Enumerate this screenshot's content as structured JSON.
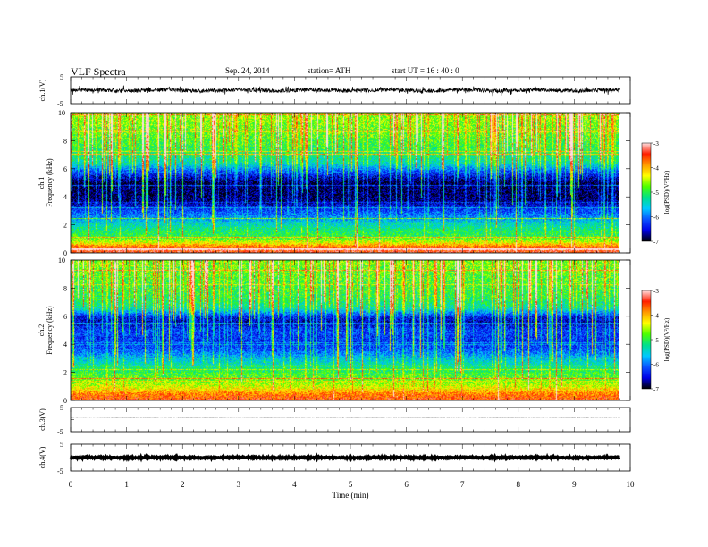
{
  "header": {
    "title": "VLF  Spectra",
    "date": "Sep. 24, 2014",
    "station": "station= ATH",
    "start": "start  UT  =   16 : 40 : 0"
  },
  "colors": {
    "spectrum_scale": [
      "#000000",
      "#0000e6",
      "#0a52ff",
      "#00c8ff",
      "#00e08c",
      "#4cff00",
      "#ffff00",
      "#ff9a00",
      "#ff1e00",
      "#ffe0e0"
    ],
    "trace": "#000000"
  },
  "chart_data": [
    {
      "type": "line",
      "panel": "ch1-waveform",
      "ylabel": "ch.1(V)",
      "ylim": [
        -5,
        5
      ],
      "yticks": [
        "5",
        "-5"
      ],
      "x_range_min": [
        0,
        9.8
      ],
      "baseline_v": 0.0,
      "amplitude_v": 1.4
    },
    {
      "type": "heatmap",
      "panel": "ch1-spectrogram",
      "ylabel_channel": "ch.1",
      "ylabel": "Frequency  (kHz)",
      "ylim": [
        0,
        10
      ],
      "yticks": [
        "0",
        "2",
        "4",
        "6",
        "8",
        "10"
      ],
      "colorbar": {
        "label": "log(PSD)(V²/Hz)",
        "range": [
          -7,
          -3
        ],
        "ticks": [
          "-3",
          "-4",
          "-5",
          "-6",
          "-7"
        ]
      },
      "profile_khz": [
        [
          0.0,
          -3.4
        ],
        [
          0.4,
          -3.6
        ],
        [
          0.8,
          -4.4
        ],
        [
          1.2,
          -5.0
        ],
        [
          1.6,
          -5.1
        ],
        [
          2.0,
          -5.4
        ],
        [
          2.6,
          -5.9
        ],
        [
          3.2,
          -6.3
        ],
        [
          3.8,
          -6.8
        ],
        [
          5.0,
          -6.9
        ],
        [
          5.8,
          -6.2
        ],
        [
          6.4,
          -5.4
        ],
        [
          7.5,
          -5.0
        ],
        [
          8.5,
          -4.8
        ],
        [
          10.0,
          -4.6
        ]
      ]
    },
    {
      "type": "heatmap",
      "panel": "ch2-spectrogram",
      "ylabel_channel": "ch.2",
      "ylabel": "Frequency  (kHz)",
      "ylim": [
        0,
        10
      ],
      "yticks": [
        "0",
        "2",
        "4",
        "6",
        "8",
        "10"
      ],
      "colorbar": {
        "label": "log(PSD)(V²/Hz)",
        "range": [
          -7,
          -3
        ],
        "ticks": [
          "-3",
          "-4",
          "-5",
          "-6",
          "-7"
        ]
      },
      "profile_khz": [
        [
          0.0,
          -3.5
        ],
        [
          0.5,
          -3.8
        ],
        [
          1.0,
          -4.4
        ],
        [
          1.6,
          -4.8
        ],
        [
          2.2,
          -5.1
        ],
        [
          3.0,
          -5.6
        ],
        [
          3.6,
          -6.1
        ],
        [
          4.2,
          -6.3
        ],
        [
          5.0,
          -6.2
        ],
        [
          5.6,
          -6.6
        ],
        [
          6.0,
          -6.4
        ],
        [
          6.6,
          -5.3
        ],
        [
          7.5,
          -5.0
        ],
        [
          10.0,
          -4.7
        ]
      ]
    },
    {
      "type": "line",
      "panel": "ch3-waveform",
      "ylabel": "ch.3(V)",
      "ylim": [
        -5,
        5
      ],
      "yticks": [
        "5",
        "-5"
      ],
      "x_range_min": [
        0,
        9.8
      ],
      "baseline_v": 1.0,
      "amplitude_v": 0.1
    },
    {
      "type": "line",
      "panel": "ch4-waveform",
      "ylabel": "ch.4(V)",
      "ylim": [
        -5,
        5
      ],
      "yticks": [
        "5",
        "-5"
      ],
      "x_range_min": [
        0,
        9.8
      ],
      "baseline_v": 0.0,
      "amplitude_v": 0.35
    }
  ],
  "xaxis": {
    "label": "Time  (min)",
    "ticks": [
      "0",
      "1",
      "2",
      "3",
      "4",
      "5",
      "6",
      "7",
      "8",
      "9",
      "10"
    ],
    "range": [
      0,
      10
    ]
  }
}
